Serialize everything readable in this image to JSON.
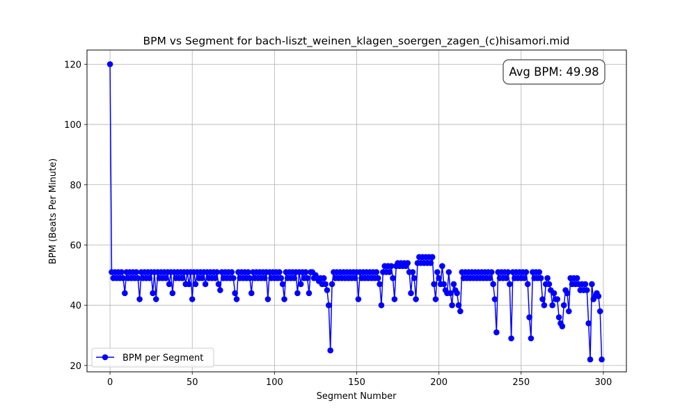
{
  "chart_data": {
    "type": "line",
    "title": "BPM vs Segment for bach-liszt_weinen_klagen_soergen_zagen_(c)hisamori.mid",
    "xlabel": "Segment Number",
    "ylabel": "BPM (Beats Per Minute)",
    "xlim": [
      -14,
      314
    ],
    "ylim": [
      17.9,
      124.7
    ],
    "xticks": [
      0,
      50,
      100,
      150,
      200,
      250,
      300
    ],
    "yticks": [
      20,
      40,
      60,
      80,
      100,
      120
    ],
    "grid": true,
    "legend_position": "lower-left",
    "annotation": "Avg BPM: 49.98",
    "colors": {
      "series": "#0000ff",
      "grid": "#b0b0b0"
    },
    "series": [
      {
        "name": "BPM per Segment",
        "marker": "circle",
        "x_start": 0,
        "values": [
          120,
          51,
          49,
          51,
          49,
          51,
          49,
          51,
          49,
          44,
          51,
          49,
          51,
          49,
          51,
          49,
          51,
          49,
          42,
          51,
          49,
          51,
          49,
          51,
          49,
          51,
          44,
          51,
          42,
          51,
          49,
          51,
          49,
          51,
          49,
          51,
          47,
          51,
          44,
          51,
          49,
          51,
          49,
          51,
          49,
          51,
          47,
          51,
          47,
          51,
          42,
          51,
          47,
          51,
          49,
          51,
          49,
          51,
          47,
          51,
          49,
          51,
          49,
          51,
          49,
          51,
          47,
          45,
          51,
          49,
          51,
          49,
          51,
          49,
          51,
          49,
          44,
          42,
          51,
          49,
          51,
          49,
          51,
          49,
          51,
          49,
          44,
          51,
          49,
          51,
          49,
          51,
          49,
          51,
          49,
          51,
          42,
          51,
          49,
          51,
          49,
          51,
          49,
          51,
          49,
          47,
          42,
          51,
          49,
          51,
          49,
          51,
          49,
          51,
          44,
          51,
          47,
          51,
          49,
          51,
          49,
          44,
          51,
          51,
          49,
          50,
          49,
          48,
          49,
          47,
          49,
          47,
          45,
          40,
          25,
          47,
          51,
          49,
          51,
          49,
          51,
          49,
          51,
          49,
          51,
          49,
          51,
          49,
          51,
          49,
          51,
          42,
          51,
          49,
          51,
          49,
          51,
          49,
          51,
          49,
          51,
          49,
          51,
          49,
          47,
          40,
          51,
          53,
          51,
          53,
          51,
          53,
          49,
          42,
          53,
          54,
          53,
          54,
          53,
          54,
          53,
          54,
          51,
          44,
          51,
          49,
          42,
          54,
          56,
          54,
          56,
          54,
          56,
          54,
          56,
          54,
          56,
          47,
          42,
          51,
          49,
          47,
          53,
          47,
          45,
          44,
          51,
          44,
          40,
          47,
          45,
          44,
          40,
          38,
          51,
          49,
          51,
          49,
          51,
          49,
          51,
          49,
          51,
          49,
          51,
          49,
          51,
          49,
          51,
          49,
          51,
          49,
          51,
          47,
          42,
          31,
          51,
          49,
          51,
          49,
          51,
          49,
          51,
          47,
          29,
          51,
          49,
          51,
          49,
          51,
          49,
          51,
          49,
          51,
          47,
          36,
          29,
          51,
          49,
          51,
          49,
          51,
          49,
          42,
          40,
          47,
          49,
          47,
          45,
          40,
          44,
          42,
          42,
          36,
          34,
          33,
          40,
          45,
          44,
          38,
          49,
          47,
          49,
          47,
          49,
          47,
          45,
          47,
          45,
          47,
          45,
          34,
          22,
          47,
          42,
          43,
          44,
          43,
          38,
          22
        ]
      }
    ]
  }
}
